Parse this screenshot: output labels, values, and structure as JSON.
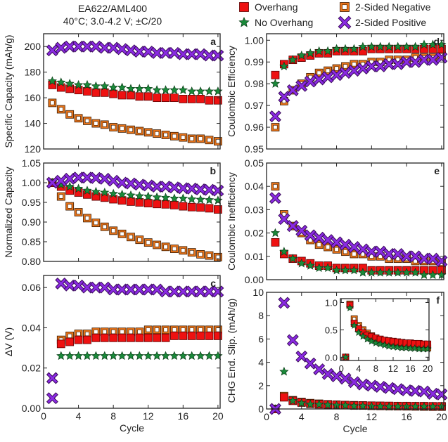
{
  "title": [
    "EA622/AML400",
    "40°C; 3.0-4.2 V; ±C/20"
  ],
  "legend": [
    {
      "key": "over",
      "label": "Overhang",
      "marker": "filled-square",
      "color": "#ee1111"
    },
    {
      "key": "neg",
      "label": "2-Sided Negative",
      "marker": "open-square",
      "color": "#e8741a"
    },
    {
      "key": "noover",
      "label": "No Overhang",
      "marker": "star",
      "color": "#1a8a3a"
    },
    {
      "key": "pos",
      "label": "2-Sided Positive",
      "marker": "x",
      "color": "#8a2be2"
    }
  ],
  "chart_data": [
    {
      "panel": "a",
      "type": "scatter",
      "ylabel": "Specific Capacity (mAh/g)",
      "xlabel": "",
      "xlim": [
        0,
        20
      ],
      "ylim": [
        120,
        210
      ],
      "yticks": [
        "120",
        "140",
        "160",
        "180",
        "200"
      ],
      "xticks": [
        0,
        4,
        8,
        12,
        16,
        20
      ],
      "grid": false,
      "x": [
        1,
        2,
        3,
        4,
        5,
        6,
        7,
        8,
        9,
        10,
        11,
        12,
        13,
        14,
        15,
        16,
        17,
        18,
        19,
        20
      ],
      "series": [
        {
          "key": "neg",
          "name": "2-Sided Negative",
          "y": [
            156,
            151,
            147,
            144,
            142,
            140,
            139,
            137,
            136,
            135,
            134,
            133,
            132,
            131,
            130,
            129,
            128,
            128,
            127,
            126
          ]
        },
        {
          "key": "over",
          "name": "Overhang",
          "y": [
            170,
            168,
            167,
            166,
            165,
            164,
            164,
            163,
            162,
            162,
            161,
            161,
            160,
            160,
            160,
            159,
            159,
            159,
            158,
            158
          ]
        },
        {
          "key": "noover",
          "name": "No Overhang",
          "y": [
            173,
            172,
            171,
            170,
            170,
            169,
            169,
            168,
            168,
            167,
            167,
            167,
            166,
            166,
            166,
            166,
            165,
            165,
            165,
            165
          ]
        },
        {
          "key": "pos",
          "name": "2-Sided Positive",
          "y": [
            197,
            199,
            200,
            200,
            200,
            200,
            199,
            199,
            198,
            197,
            196,
            196,
            195,
            195,
            195,
            194,
            194,
            194,
            193,
            193
          ]
        }
      ]
    },
    {
      "panel": "b",
      "type": "scatter",
      "ylabel": "Normalized Capacity",
      "xlabel": "",
      "xlim": [
        0,
        20
      ],
      "ylim": [
        0.8,
        1.05
      ],
      "yticks": [
        "0.80",
        "0.85",
        "0.90",
        "0.95",
        "1.00",
        "1.05"
      ],
      "xticks": [
        0,
        4,
        8,
        12,
        16,
        20
      ],
      "grid": false,
      "x": [
        1,
        2,
        3,
        4,
        5,
        6,
        7,
        8,
        9,
        10,
        11,
        12,
        13,
        14,
        15,
        16,
        17,
        18,
        19,
        20
      ],
      "series": [
        {
          "key": "neg",
          "name": "2-Sided Negative",
          "y": [
            1.0,
            0.965,
            0.94,
            0.925,
            0.91,
            0.898,
            0.888,
            0.878,
            0.87,
            0.862,
            0.855,
            0.848,
            0.842,
            0.837,
            0.832,
            0.828,
            0.823,
            0.818,
            0.815,
            0.811
          ]
        },
        {
          "key": "over",
          "name": "Overhang",
          "y": [
            1.0,
            0.99,
            0.98,
            0.975,
            0.97,
            0.965,
            0.962,
            0.958,
            0.955,
            0.952,
            0.95,
            0.948,
            0.946,
            0.945,
            0.943,
            0.94,
            0.938,
            0.937,
            0.935,
            0.932
          ]
        },
        {
          "key": "noover",
          "name": "No Overhang",
          "y": [
            1.0,
            0.995,
            0.99,
            0.985,
            0.98,
            0.977,
            0.975,
            0.972,
            0.97,
            0.968,
            0.966,
            0.965,
            0.963,
            0.962,
            0.96,
            0.96,
            0.958,
            0.957,
            0.956,
            0.955
          ]
        },
        {
          "key": "pos",
          "name": "2-Sided Positive",
          "y": [
            1.0,
            1.005,
            1.01,
            1.013,
            1.013,
            1.012,
            1.01,
            1.005,
            1.0,
            0.998,
            0.995,
            0.993,
            0.99,
            0.99,
            0.988,
            0.986,
            0.985,
            0.983,
            0.982,
            0.98
          ]
        }
      ]
    },
    {
      "panel": "c",
      "type": "scatter",
      "ylabel": "ΔV (V)",
      "xlabel": "Cycle",
      "xlim": [
        0,
        20
      ],
      "ylim": [
        0,
        0.066
      ],
      "yticks": [
        "0.00",
        "0.02",
        "0.04",
        "0.06"
      ],
      "xticks": [
        0,
        4,
        8,
        12,
        16,
        20
      ],
      "grid": false,
      "x": [
        2,
        3,
        4,
        5,
        6,
        7,
        8,
        9,
        10,
        11,
        12,
        13,
        14,
        15,
        16,
        17,
        18,
        19,
        20
      ],
      "series": [
        {
          "key": "neg",
          "name": "2-Sided Negative",
          "y": [
            0.034,
            0.036,
            0.037,
            0.037,
            0.038,
            0.038,
            0.038,
            0.038,
            0.038,
            0.038,
            0.039,
            0.039,
            0.039,
            0.039,
            0.039,
            0.039,
            0.039,
            0.039,
            0.039
          ]
        },
        {
          "key": "over",
          "name": "Overhang",
          "y": [
            0.032,
            0.033,
            0.034,
            0.034,
            0.035,
            0.035,
            0.035,
            0.035,
            0.035,
            0.035,
            0.035,
            0.035,
            0.035,
            0.036,
            0.036,
            0.036,
            0.036,
            0.036,
            0.036
          ]
        },
        {
          "key": "noover",
          "name": "No Overhang",
          "y": [
            0.026,
            0.026,
            0.026,
            0.026,
            0.026,
            0.026,
            0.026,
            0.026,
            0.026,
            0.026,
            0.026,
            0.026,
            0.026,
            0.026,
            0.026,
            0.026,
            0.026,
            0.026,
            0.026
          ]
        },
        {
          "key": "pos",
          "name": "2-Sided Positive",
          "x": [
            1,
            1,
            2,
            3,
            4,
            5,
            6,
            7,
            8,
            9,
            10,
            11,
            12,
            13,
            14,
            15,
            16,
            17,
            18,
            19,
            20
          ],
          "y": [
            0.015,
            0.005,
            0.062,
            0.061,
            0.061,
            0.06,
            0.06,
            0.06,
            0.059,
            0.059,
            0.059,
            0.059,
            0.059,
            0.059,
            0.058,
            0.058,
            0.058,
            0.058,
            0.058,
            0.058,
            0.058
          ]
        }
      ]
    },
    {
      "panel": "d",
      "type": "scatter",
      "ylabel": "Coulombic Efficiency",
      "xlabel": "",
      "xlim": [
        0,
        20
      ],
      "ylim": [
        0.95,
        1.003
      ],
      "yticks": [
        "0.95",
        "0.96",
        "0.97",
        "0.98",
        "0.99",
        "1.00"
      ],
      "xticks": [
        0,
        4,
        8,
        12,
        16,
        20
      ],
      "grid": false,
      "x": [
        1,
        2,
        3,
        4,
        5,
        6,
        7,
        8,
        9,
        10,
        11,
        12,
        13,
        14,
        15,
        16,
        17,
        18,
        19,
        20
      ],
      "series": [
        {
          "key": "neg",
          "name": "2-Sided Negative",
          "y": [
            0.96,
            0.972,
            0.977,
            0.98,
            0.983,
            0.985,
            0.986,
            0.987,
            0.988,
            0.989,
            0.989,
            0.99,
            0.99,
            0.991,
            0.991,
            0.991,
            0.992,
            0.992,
            0.992,
            0.993
          ]
        },
        {
          "key": "pos",
          "name": "2-Sided Positive",
          "y": [
            0.965,
            0.974,
            0.977,
            0.979,
            0.981,
            0.982,
            0.983,
            0.984,
            0.985,
            0.986,
            0.987,
            0.988,
            0.988,
            0.989,
            0.989,
            0.99,
            0.99,
            0.991,
            0.991,
            0.992
          ]
        },
        {
          "key": "over",
          "name": "Overhang",
          "y": [
            0.984,
            0.989,
            0.991,
            0.992,
            0.993,
            0.994,
            0.994,
            0.995,
            0.995,
            0.995,
            0.995,
            0.996,
            0.996,
            0.996,
            0.996,
            0.996,
            0.996,
            0.996,
            0.996,
            0.996
          ]
        },
        {
          "key": "noover",
          "name": "No Overhang",
          "y": [
            0.98,
            0.988,
            0.991,
            0.993,
            0.994,
            0.995,
            0.995,
            0.996,
            0.996,
            0.996,
            0.997,
            0.997,
            0.997,
            0.997,
            0.997,
            0.997,
            0.997,
            0.998,
            0.998,
            0.998
          ]
        }
      ]
    },
    {
      "panel": "e",
      "type": "scatter",
      "ylabel": "Coulombic Inefficiency",
      "xlabel": "",
      "xlim": [
        0,
        20
      ],
      "ylim": [
        0,
        0.05
      ],
      "yticks": [
        "0.00",
        "0.01",
        "0.02",
        "0.03",
        "0.04",
        "0.05"
      ],
      "xticks": [
        0,
        4,
        8,
        12,
        16,
        20
      ],
      "grid": false,
      "x": [
        1,
        2,
        3,
        4,
        5,
        6,
        7,
        8,
        9,
        10,
        11,
        12,
        13,
        14,
        15,
        16,
        17,
        18,
        19,
        20
      ],
      "series": [
        {
          "key": "neg",
          "name": "2-Sided Negative",
          "y": [
            0.04,
            0.028,
            0.023,
            0.02,
            0.017,
            0.015,
            0.014,
            0.013,
            0.012,
            0.011,
            0.011,
            0.01,
            0.01,
            0.009,
            0.009,
            0.009,
            0.008,
            0.008,
            0.008,
            0.007
          ]
        },
        {
          "key": "over",
          "name": "Overhang",
          "y": [
            0.016,
            0.011,
            0.009,
            0.008,
            0.007,
            0.006,
            0.006,
            0.005,
            0.005,
            0.005,
            0.005,
            0.004,
            0.004,
            0.004,
            0.004,
            0.004,
            0.004,
            0.004,
            0.004,
            0.004
          ]
        },
        {
          "key": "noover",
          "name": "No Overhang",
          "y": [
            0.02,
            0.012,
            0.009,
            0.007,
            0.006,
            0.005,
            0.005,
            0.004,
            0.004,
            0.004,
            0.003,
            0.003,
            0.003,
            0.003,
            0.003,
            0.003,
            0.003,
            0.002,
            0.002,
            0.002
          ]
        },
        {
          "key": "pos",
          "name": "2-Sided Positive",
          "y": [
            0.035,
            0.026,
            0.023,
            0.021,
            0.019,
            0.018,
            0.017,
            0.016,
            0.015,
            0.014,
            0.013,
            0.012,
            0.012,
            0.011,
            0.011,
            0.01,
            0.01,
            0.009,
            0.009,
            0.008
          ]
        }
      ]
    },
    {
      "panel": "f",
      "type": "scatter",
      "ylabel": "CHG End. Slip. (mAh/g)",
      "xlabel": "Cycle",
      "xlim": [
        0,
        20
      ],
      "ylim": [
        0,
        10
      ],
      "yticks": [
        "0",
        "2",
        "4",
        "6",
        "8",
        "10"
      ],
      "xticks": [
        0,
        4,
        8,
        12,
        16,
        20
      ],
      "grid": false,
      "x": [
        1,
        2,
        3,
        4,
        5,
        6,
        7,
        8,
        9,
        10,
        11,
        12,
        13,
        14,
        15,
        16,
        17,
        18,
        19,
        20
      ],
      "series": [
        {
          "key": "neg",
          "name": "2-Sided Negative",
          "y": [
            0,
            1.1,
            0.75,
            0.6,
            0.5,
            0.45,
            0.4,
            0.37,
            0.34,
            0.32,
            0.3,
            0.28,
            0.26,
            0.25,
            0.24,
            0.23,
            0.22,
            0.21,
            0.2,
            0.2
          ]
        },
        {
          "key": "over",
          "name": "Overhang",
          "y": [
            0,
            1.0,
            0.7,
            0.55,
            0.45,
            0.4,
            0.38,
            0.35,
            0.33,
            0.3,
            0.3,
            0.28,
            0.27,
            0.26,
            0.25,
            0.25,
            0.24,
            0.24,
            0.23,
            0.23
          ]
        },
        {
          "key": "noover",
          "name": "No Overhang",
          "y": [
            0,
            3.2,
            0.7,
            0.5,
            0.4,
            0.4,
            0.35,
            0.3,
            0.3,
            0.25,
            0.25,
            0.22,
            0.22,
            0.2,
            0.2,
            0.2,
            0.2,
            0.2,
            0.2,
            0.2
          ]
        },
        {
          "key": "pos",
          "name": "2-Sided Positive",
          "y": [
            0,
            9.1,
            5.9,
            4.5,
            3.9,
            3.4,
            3.0,
            2.8,
            2.6,
            2.3,
            2.1,
            2.0,
            1.9,
            1.8,
            1.7,
            1.6,
            1.55,
            1.5,
            1.3,
            1.25
          ]
        }
      ]
    },
    {
      "panel": "f-inset",
      "type": "scatter",
      "ylabel": "",
      "xlabel": "",
      "xlim": [
        0,
        20
      ],
      "ylim": [
        0,
        1.0
      ],
      "yticks": [
        "0.0",
        "0.5",
        "1.0"
      ],
      "xticks": [
        0,
        4,
        8,
        12,
        16,
        20
      ],
      "grid": false,
      "x": [
        1,
        2,
        3,
        4,
        5,
        6,
        7,
        8,
        9,
        10,
        11,
        12,
        13,
        14,
        15,
        16,
        17,
        18,
        19,
        20
      ],
      "series": [
        {
          "key": "neg",
          "name": "2-Sided Negative",
          "y": [
            0,
            0.97,
            0.7,
            0.58,
            0.5,
            0.44,
            0.39,
            0.35,
            0.32,
            0.3,
            0.28,
            0.26,
            0.24,
            0.23,
            0.22,
            0.21,
            0.2,
            0.19,
            0.18,
            0.17
          ]
        },
        {
          "key": "over",
          "name": "Overhang",
          "y": [
            0,
            0.95,
            0.62,
            0.52,
            0.45,
            0.4,
            0.38,
            0.35,
            0.33,
            0.31,
            0.3,
            0.29,
            0.28,
            0.27,
            0.26,
            0.26,
            0.25,
            0.25,
            0.24,
            0.24
          ]
        },
        {
          "key": "noover",
          "name": "No Overhang",
          "y": [
            0,
            0.9,
            0.58,
            0.45,
            0.38,
            0.33,
            0.29,
            0.26,
            0.24,
            0.22,
            0.2,
            0.19,
            0.18,
            0.17,
            0.17,
            0.16,
            0.16,
            0.15,
            0.15,
            0.15
          ]
        }
      ]
    }
  ]
}
